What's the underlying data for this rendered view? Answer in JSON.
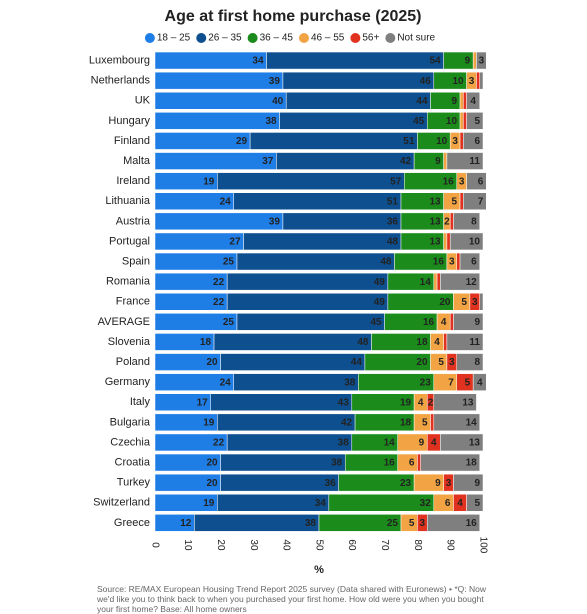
{
  "chart_data": {
    "type": "stacked-bar-horizontal",
    "title": "Age at first home purchase (2025)",
    "categories": [
      "Luxembourg",
      "Netherlands",
      "UK",
      "Hungary",
      "Finland",
      "Malta",
      "Ireland",
      "Lithuania",
      "Austria",
      "Portugal",
      "Spain",
      "Romania",
      "France",
      "AVERAGE",
      "Slovenia",
      "Poland",
      "Germany",
      "Italy",
      "Bulgaria",
      "Czechia",
      "Croatia",
      "Turkey",
      "Switzerland",
      "Greece"
    ],
    "series": [
      {
        "name": "18 – 25",
        "color": "#1f7de6",
        "values": [
          34,
          39,
          40,
          38,
          29,
          37,
          19,
          24,
          39,
          27,
          25,
          22,
          22,
          25,
          18,
          20,
          24,
          17,
          19,
          22,
          20,
          20,
          19,
          12
        ]
      },
      {
        "name": "26 – 35",
        "color": "#0e4f8f",
        "values": [
          54,
          46,
          44,
          45,
          51,
          42,
          57,
          51,
          36,
          48,
          48,
          49,
          49,
          45,
          48,
          44,
          38,
          43,
          42,
          38,
          38,
          36,
          34,
          38
        ]
      },
      {
        "name": "36 – 45",
        "color": "#1b8c1b",
        "values": [
          9,
          10,
          9,
          10,
          10,
          9,
          16,
          13,
          13,
          13,
          16,
          14,
          20,
          16,
          18,
          20,
          23,
          19,
          18,
          14,
          16,
          23,
          32,
          25
        ]
      },
      {
        "name": "46 – 55",
        "color": "#f2a444",
        "values": [
          1,
          3,
          1,
          1,
          3,
          1,
          3,
          5,
          2,
          1,
          3,
          1,
          5,
          4,
          4,
          5,
          7,
          4,
          5,
          9,
          6,
          9,
          6,
          5
        ]
      },
      {
        "name": "56+",
        "color": "#e0321e",
        "values": [
          0,
          1,
          1,
          1,
          1,
          0,
          0,
          1,
          1,
          1,
          1,
          1,
          3,
          1,
          1,
          3,
          5,
          2,
          1,
          4,
          1,
          3,
          4,
          3
        ]
      },
      {
        "name": "Not sure",
        "color": "#7f7f7f",
        "values": [
          3,
          1,
          4,
          5,
          6,
          11,
          6,
          7,
          8,
          10,
          6,
          12,
          1,
          9,
          11,
          8,
          4,
          13,
          14,
          13,
          18,
          9,
          5,
          16
        ]
      }
    ],
    "xlim": [
      0,
      100
    ],
    "xticks": [
      0,
      10,
      20,
      30,
      40,
      50,
      60,
      70,
      80,
      90,
      100
    ],
    "xlabel": "%",
    "source": "Source: RE/MAX European Housing Trend Report 2025 survey (Data shared with Euronews) • *Q: Now we'd like you to think back to when you purchased your first home. How old were you when you bought your first home? Base: All home owners"
  }
}
